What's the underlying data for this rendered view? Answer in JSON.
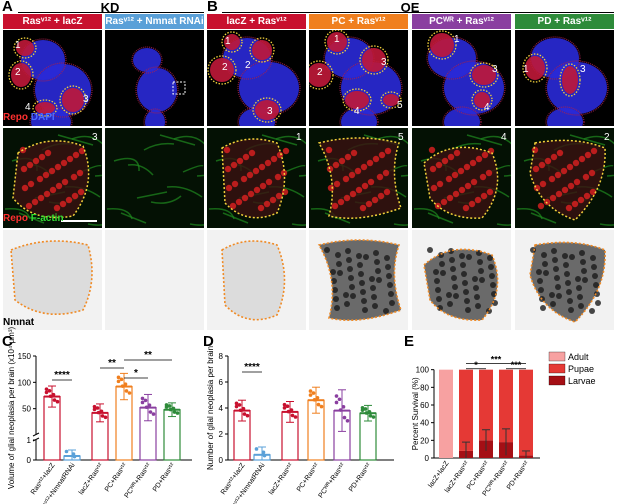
{
  "panel_labels": {
    "a": "A",
    "b": "B",
    "c": "C",
    "d": "D",
    "e": "E"
  },
  "headers": {
    "kd": "KD",
    "oe": "OE"
  },
  "conditions": [
    {
      "id": "ras-lacz",
      "label": "Rasᵛ¹² + lacZ",
      "color": "#c8102e"
    },
    {
      "id": "ras-nmnat",
      "label": "Rasᵛ¹² + Nmnat RNAi",
      "color": "#5aa0d8"
    },
    {
      "id": "lacz-ras",
      "label": "lacZ + Rasᵛ¹²",
      "color": "#c8102e"
    },
    {
      "id": "pc-ras",
      "label": "PC + Rasᵛ¹²",
      "color": "#f07f1e"
    },
    {
      "id": "pcwr-ras",
      "label": "PCᵂᴿ + Rasᵛ¹²",
      "color": "#8a3fa0"
    },
    {
      "id": "pd-ras",
      "label": "PD + Rasᵛ¹²",
      "color": "#2e8b3a"
    }
  ],
  "stain_labels": {
    "row1_repo": "Repo",
    "row1_dapi": "DAPI",
    "row2_repo": "Repo",
    "row2_factin": "F-actin",
    "row3_nmnat": "Nmnat"
  },
  "row1_region_numbers": [
    [
      "1",
      "2",
      "4",
      "3"
    ],
    [],
    [
      "1",
      "2",
      "2",
      "3"
    ],
    [
      "1",
      "2",
      "3",
      "4",
      "5"
    ],
    [
      "1",
      "3",
      "4"
    ],
    [
      "1",
      "3"
    ]
  ],
  "row2_region_numbers": [
    "3",
    "",
    "1",
    "5",
    "4",
    "2"
  ],
  "chart_c": {
    "ylabel": "Volume of glial neoplasia per brain (x10⁴ μm³)",
    "categories": [
      "Rasᵛ¹²+lacZ",
      "Rasᵛ¹²+NmnatRNAi",
      "lacZ+Rasᵛ¹²",
      "PC+Rasᵛ¹²",
      "PCᵂᴿ+Rasᵛ¹²",
      "PD+Rasᵛ¹²"
    ],
    "significance": [
      "****",
      "**",
      "*",
      "**"
    ]
  },
  "chart_d": {
    "ylabel": "Number of glial neoplasia per brain",
    "categories": [
      "Rasᵛ¹²+lacZ",
      "Rasᵛ¹²+NmnatRNAi",
      "lacZ+Rasᵛ¹²",
      "PC+Rasᵛ¹²",
      "PCᵂᴿ+Rasᵛ¹²",
      "PD+Rasᵛ¹²"
    ],
    "significance": [
      "****"
    ]
  },
  "chart_e": {
    "ylabel": "Percent Survival (%)",
    "legend": [
      "Adult",
      "Pupae",
      "Larvae"
    ],
    "categories": [
      "lacZ+lacZ",
      "lacZ+Rasᵛ¹²",
      "PC+Rasᵛ¹²",
      "PCᵂᴿ+Rasᵛ¹²",
      "PD+Rasᵛ¹²"
    ],
    "significance": [
      "*",
      "***",
      "***"
    ]
  },
  "chart_data": [
    {
      "type": "bar",
      "title": "",
      "ylabel": "Volume of glial neoplasia per brain (x10⁴ μm³)",
      "categories": [
        "Rasᵛ¹²+lacZ",
        "Rasᵛ¹²+NmnatRNAi",
        "lacZ+Rasᵛ¹²",
        "PC+Rasᵛ¹²",
        "PCᵂᴿ+Rasᵛ¹²",
        "PD+Rasᵛ¹²"
      ],
      "values": [
        73,
        0.2,
        42,
        92,
        52,
        48
      ],
      "errors": [
        20,
        0.3,
        17,
        25,
        25,
        13
      ],
      "colors": [
        "#c8102e",
        "#5aa0d8",
        "#c8102e",
        "#f07f1e",
        "#8a3fa0",
        "#2e8b3a"
      ],
      "yticks_upper": [
        50,
        100,
        150
      ],
      "yticks_lower": [
        0,
        1
      ],
      "axis_break": true,
      "ylim": [
        0,
        150
      ]
    },
    {
      "type": "bar",
      "title": "",
      "ylabel": "Number of glial neoplasia per brain",
      "categories": [
        "Rasᵛ¹²+lacZ",
        "Rasᵛ¹²+NmnatRNAi",
        "lacZ+Rasᵛ¹²",
        "PC+Rasᵛ¹²",
        "PCᵂᴿ+Rasᵛ¹²",
        "PD+Rasᵛ¹²"
      ],
      "values": [
        3.8,
        0.4,
        3.7,
        4.6,
        3.8,
        3.6
      ],
      "errors": [
        0.8,
        0.6,
        0.8,
        1.0,
        1.6,
        0.6
      ],
      "colors": [
        "#c8102e",
        "#5aa0d8",
        "#c8102e",
        "#f07f1e",
        "#8a3fa0",
        "#2e8b3a"
      ],
      "yticks": [
        0,
        2,
        4,
        6,
        8
      ],
      "ylim": [
        0,
        8
      ]
    },
    {
      "type": "bar",
      "stacked": true,
      "title": "",
      "ylabel": "Percent Survival (%)",
      "categories": [
        "lacZ+lacZ",
        "lacZ+Rasᵛ¹²",
        "PC+Rasᵛ¹²",
        "PCᵂᴿ+Rasᵛ¹²",
        "PD+Rasᵛ¹²"
      ],
      "series": [
        {
          "name": "Larvae",
          "values": [
            0,
            8,
            20,
            18,
            3
          ],
          "errors": [
            0,
            10,
            12,
            15,
            5
          ],
          "color": "#a50f15"
        },
        {
          "name": "Pupae",
          "values": [
            0,
            92,
            80,
            82,
            97
          ],
          "color": "#e53935"
        },
        {
          "name": "Adult",
          "values": [
            100,
            0,
            0,
            0,
            0
          ],
          "color": "#f7a1a1"
        }
      ],
      "yticks": [
        0,
        20,
        40,
        60,
        80,
        100
      ],
      "ylim": [
        0,
        120
      ],
      "legend_position": "top-right"
    }
  ]
}
